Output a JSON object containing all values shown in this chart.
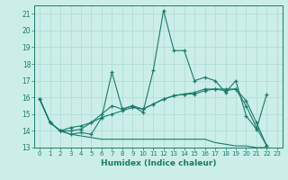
{
  "xlabel": "Humidex (Indice chaleur)",
  "bg_color": "#cceee8",
  "grid_color": "#b0ddda",
  "line_color": "#1a7a6a",
  "xlim": [
    -0.5,
    23.5
  ],
  "ylim": [
    13,
    21.5
  ],
  "xticks": [
    0,
    1,
    2,
    3,
    4,
    5,
    6,
    7,
    8,
    9,
    10,
    11,
    12,
    13,
    14,
    15,
    16,
    17,
    18,
    19,
    20,
    21,
    22,
    23
  ],
  "yticks": [
    13,
    14,
    15,
    16,
    17,
    18,
    19,
    20,
    21
  ],
  "series_marked": [
    [
      15.9,
      14.5,
      14.0,
      13.8,
      13.9,
      13.8,
      14.8,
      17.5,
      15.3,
      15.5,
      15.1,
      17.6,
      21.2,
      18.8,
      18.8,
      17.0,
      17.2,
      17.0,
      16.3,
      17.0,
      14.9,
      14.1,
      16.2
    ],
    [
      15.9,
      14.5,
      14.0,
      14.0,
      14.1,
      14.5,
      15.0,
      15.5,
      15.3,
      15.5,
      15.3,
      15.6,
      15.9,
      16.1,
      16.2,
      16.3,
      16.5,
      16.5,
      16.5,
      16.5,
      15.8,
      14.5,
      13.1
    ],
    [
      15.9,
      14.5,
      14.0,
      14.2,
      14.3,
      14.5,
      14.8,
      15.0,
      15.2,
      15.4,
      15.3,
      15.6,
      15.9,
      16.1,
      16.2,
      16.2,
      16.4,
      16.5,
      16.4,
      16.5,
      15.5,
      14.2,
      13.1
    ]
  ],
  "series_plain": [
    [
      15.9,
      14.5,
      14.0,
      13.8,
      13.7,
      13.6,
      13.5,
      13.5,
      13.5,
      13.5,
      13.5,
      13.5,
      13.5,
      13.5,
      13.5,
      13.5,
      13.5,
      13.3,
      13.2,
      13.1,
      13.1,
      13.0,
      13.0
    ]
  ]
}
